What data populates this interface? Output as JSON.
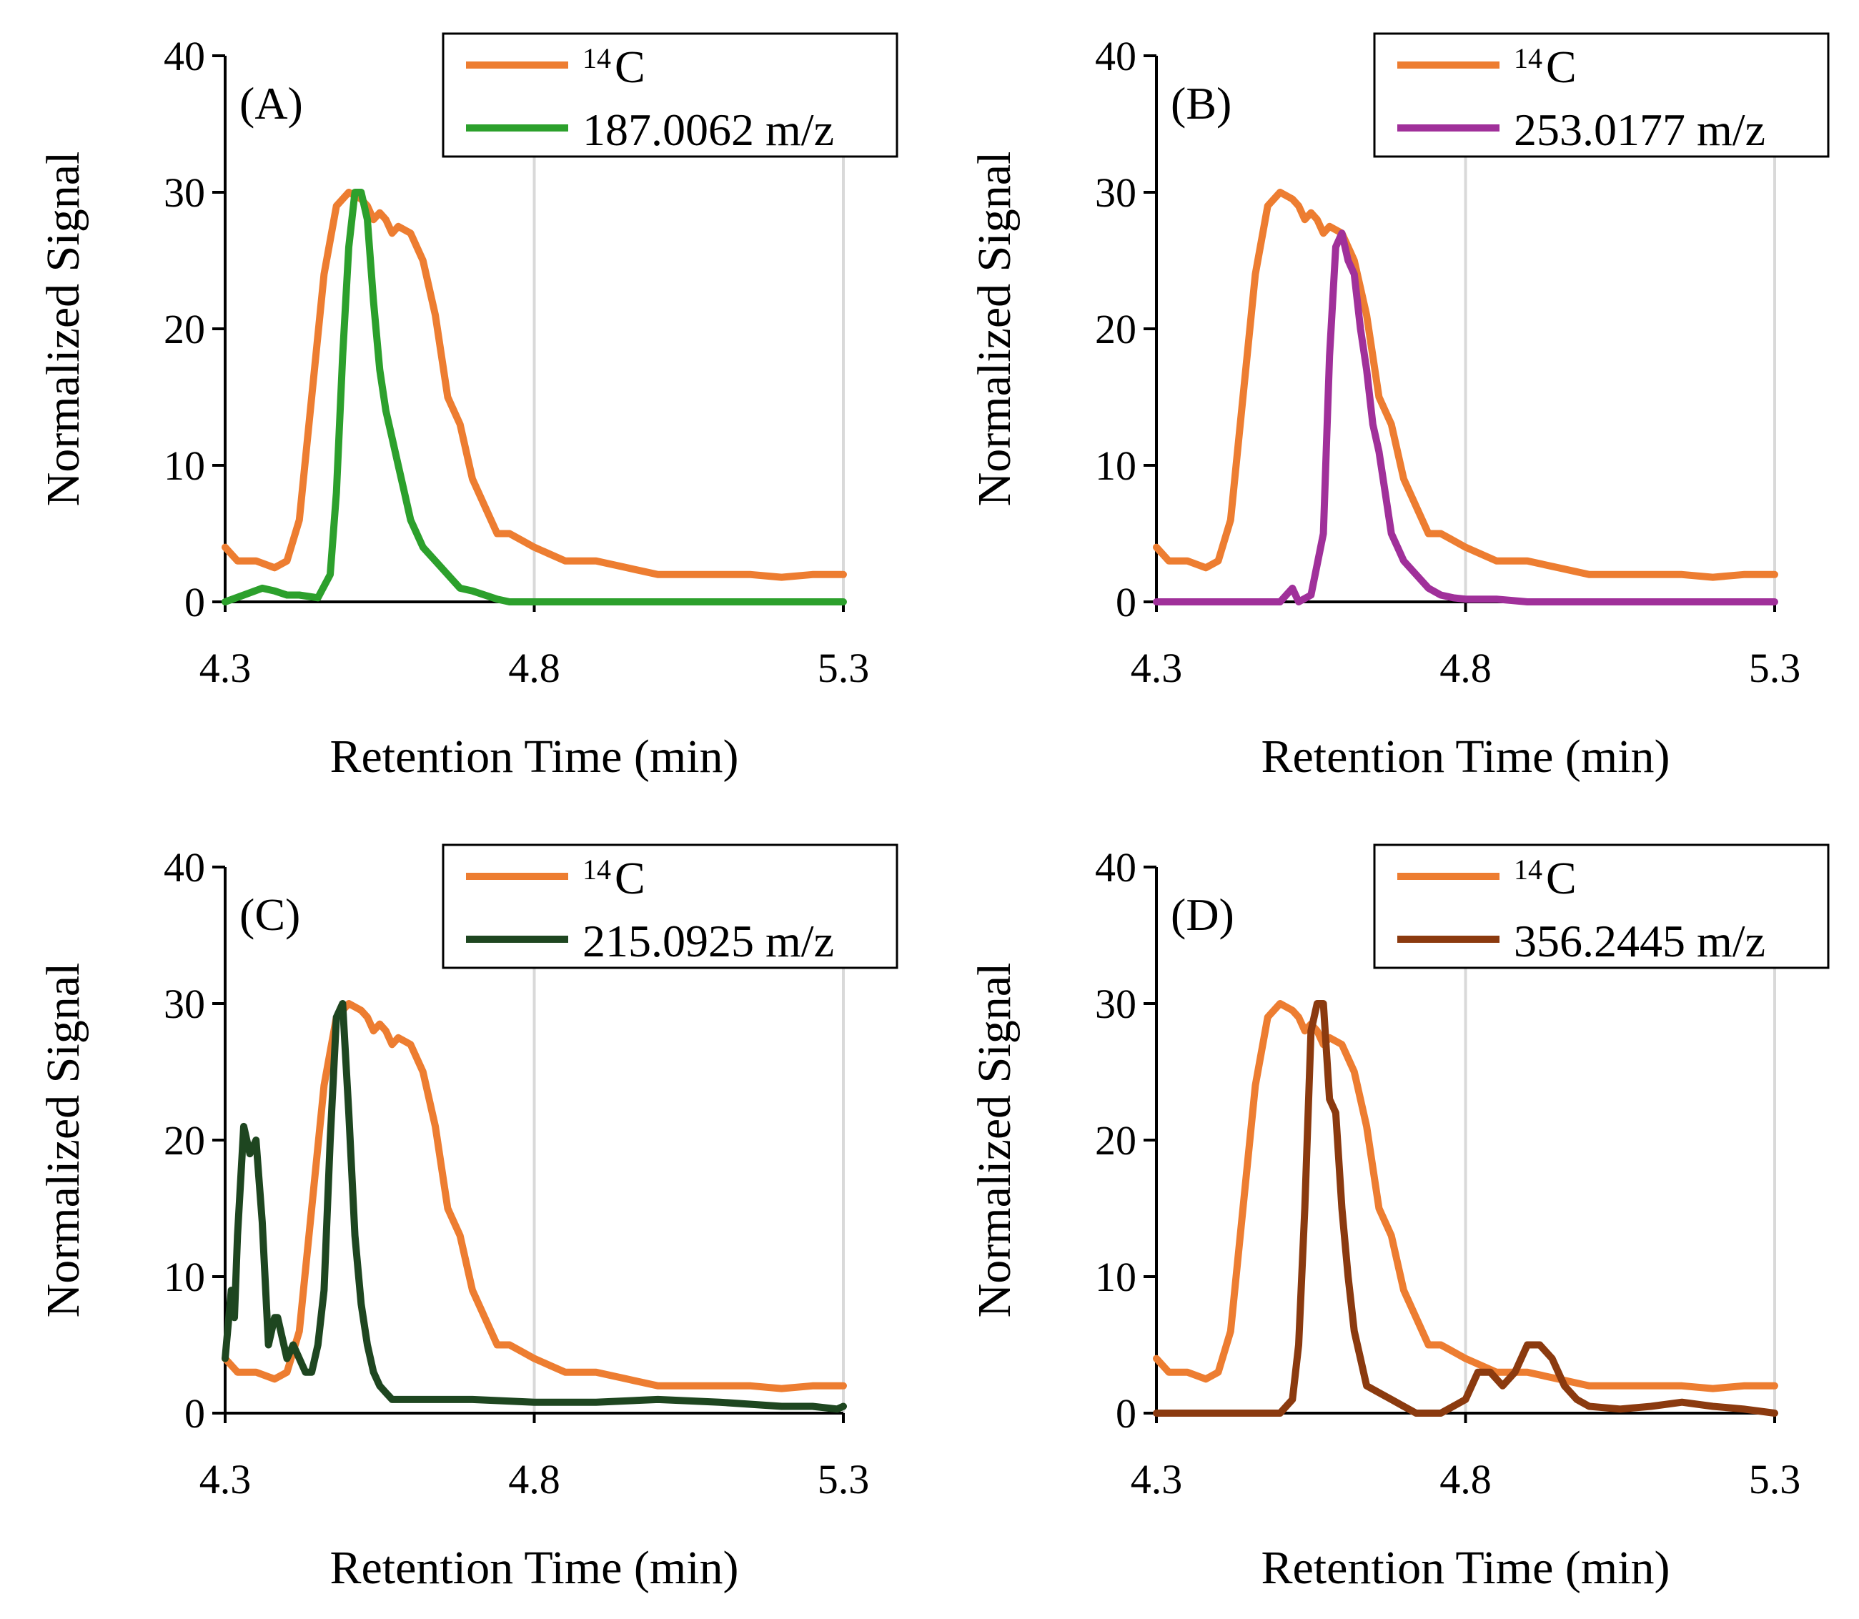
{
  "chart_data": [
    {
      "type": "line",
      "panel_label": "(A)",
      "xlabel": "Retention Time (min)",
      "ylabel": "Normalized Signal",
      "xlim": [
        4.3,
        5.3
      ],
      "ylim": [
        0,
        40
      ],
      "xticks": [
        "4.3",
        "4.8",
        "5.3"
      ],
      "yticks": [
        "0",
        "10",
        "20",
        "30",
        "40"
      ],
      "grid": "vertical",
      "legend": {
        "position": "top-right"
      },
      "series": [
        {
          "name": "14C",
          "legend_main": "C",
          "legend_sup": "14",
          "color": "#ED7D31",
          "x": [
            4.3,
            4.32,
            4.35,
            4.38,
            4.4,
            4.42,
            4.44,
            4.46,
            4.48,
            4.5,
            4.52,
            4.53,
            4.54,
            4.55,
            4.56,
            4.57,
            4.58,
            4.6,
            4.62,
            4.64,
            4.66,
            4.68,
            4.7,
            4.72,
            4.74,
            4.76,
            4.78,
            4.8,
            4.85,
            4.9,
            4.95,
            5.0,
            5.05,
            5.1,
            5.15,
            5.2,
            5.25,
            5.3
          ],
          "y": [
            4.0,
            3.0,
            3.0,
            2.5,
            3.0,
            6,
            15,
            24,
            29,
            30,
            29.5,
            29,
            28,
            28.5,
            28,
            27,
            27.5,
            27,
            25,
            21,
            15,
            13,
            9,
            7,
            5,
            5,
            4.5,
            4,
            3,
            3,
            2.5,
            2,
            2,
            2,
            2,
            1.8,
            2,
            2
          ]
        },
        {
          "name": "187.0062 m/z",
          "color": "#2CA02C",
          "x": [
            4.3,
            4.33,
            4.36,
            4.38,
            4.4,
            4.42,
            4.45,
            4.47,
            4.48,
            4.49,
            4.5,
            4.51,
            4.52,
            4.53,
            4.54,
            4.55,
            4.56,
            4.57,
            4.58,
            4.59,
            4.6,
            4.62,
            4.64,
            4.66,
            4.68,
            4.7,
            4.72,
            4.74,
            4.76,
            4.8,
            4.9,
            5.0,
            5.1,
            5.2,
            5.3
          ],
          "y": [
            0,
            0.5,
            1,
            0.8,
            0.5,
            0.5,
            0.3,
            2,
            8,
            18,
            26,
            30,
            30,
            28,
            22,
            17,
            14,
            12,
            10,
            8,
            6,
            4,
            3,
            2,
            1,
            0.8,
            0.5,
            0.2,
            0,
            0,
            0,
            0,
            0,
            0,
            0
          ]
        }
      ]
    },
    {
      "type": "line",
      "panel_label": "(B)",
      "xlabel": "Retention Time (min)",
      "ylabel": "Normalized Signal",
      "xlim": [
        4.3,
        5.3
      ],
      "ylim": [
        0,
        40
      ],
      "xticks": [
        "4.3",
        "4.8",
        "5.3"
      ],
      "yticks": [
        "0",
        "10",
        "20",
        "30",
        "40"
      ],
      "grid": "vertical",
      "legend": {
        "position": "top-right"
      },
      "series": [
        {
          "name": "14C",
          "legend_main": "C",
          "legend_sup": "14",
          "color": "#ED7D31",
          "x": [
            4.3,
            4.32,
            4.35,
            4.38,
            4.4,
            4.42,
            4.44,
            4.46,
            4.48,
            4.5,
            4.52,
            4.53,
            4.54,
            4.55,
            4.56,
            4.57,
            4.58,
            4.6,
            4.62,
            4.64,
            4.66,
            4.68,
            4.7,
            4.72,
            4.74,
            4.76,
            4.78,
            4.8,
            4.85,
            4.9,
            4.95,
            5.0,
            5.05,
            5.1,
            5.15,
            5.2,
            5.25,
            5.3
          ],
          "y": [
            4.0,
            3.0,
            3.0,
            2.5,
            3.0,
            6,
            15,
            24,
            29,
            30,
            29.5,
            29,
            28,
            28.5,
            28,
            27,
            27.5,
            27,
            25,
            21,
            15,
            13,
            9,
            7,
            5,
            5,
            4.5,
            4,
            3,
            3,
            2.5,
            2,
            2,
            2,
            2,
            1.8,
            2,
            2
          ]
        },
        {
          "name": "253.0177 m/z",
          "color": "#A0309A",
          "x": [
            4.3,
            4.4,
            4.5,
            4.52,
            4.53,
            4.55,
            4.57,
            4.58,
            4.59,
            4.6,
            4.61,
            4.62,
            4.63,
            4.64,
            4.65,
            4.66,
            4.67,
            4.68,
            4.69,
            4.7,
            4.72,
            4.74,
            4.76,
            4.78,
            4.8,
            4.85,
            4.9,
            5.0,
            5.1,
            5.2,
            5.3
          ],
          "y": [
            0,
            0,
            0,
            1,
            0,
            0.5,
            5,
            18,
            26,
            27,
            25,
            24,
            20,
            17,
            13,
            11,
            8,
            5,
            4,
            3,
            2,
            1,
            0.5,
            0.3,
            0.2,
            0.2,
            0,
            0,
            0,
            0,
            0
          ]
        }
      ]
    },
    {
      "type": "line",
      "panel_label": "(C)",
      "xlabel": "Retention Time (min)",
      "ylabel": "Normalized Signal",
      "xlim": [
        4.3,
        5.3
      ],
      "ylim": [
        0,
        40
      ],
      "xticks": [
        "4.3",
        "4.8",
        "5.3"
      ],
      "yticks": [
        "0",
        "10",
        "20",
        "30",
        "40"
      ],
      "grid": "vertical",
      "legend": {
        "position": "top-right"
      },
      "series": [
        {
          "name": "14C",
          "legend_main": "C",
          "legend_sup": "14",
          "color": "#ED7D31",
          "x": [
            4.3,
            4.32,
            4.35,
            4.38,
            4.4,
            4.42,
            4.44,
            4.46,
            4.48,
            4.5,
            4.52,
            4.53,
            4.54,
            4.55,
            4.56,
            4.57,
            4.58,
            4.6,
            4.62,
            4.64,
            4.66,
            4.68,
            4.7,
            4.72,
            4.74,
            4.76,
            4.78,
            4.8,
            4.85,
            4.9,
            4.95,
            5.0,
            5.05,
            5.1,
            5.15,
            5.2,
            5.25,
            5.3
          ],
          "y": [
            4.0,
            3.0,
            3.0,
            2.5,
            3.0,
            6,
            15,
            24,
            29,
            30,
            29.5,
            29,
            28,
            28.5,
            28,
            27,
            27.5,
            27,
            25,
            21,
            15,
            13,
            9,
            7,
            5,
            5,
            4.5,
            4,
            3,
            3,
            2.5,
            2,
            2,
            2,
            2,
            1.8,
            2,
            2
          ]
        },
        {
          "name": "215.0925 m/z",
          "color": "#1E4620",
          "x": [
            4.3,
            4.31,
            4.315,
            4.32,
            4.33,
            4.34,
            4.35,
            4.36,
            4.37,
            4.38,
            4.385,
            4.39,
            4.4,
            4.41,
            4.42,
            4.43,
            4.44,
            4.45,
            4.46,
            4.47,
            4.48,
            4.49,
            4.5,
            4.51,
            4.52,
            4.53,
            4.54,
            4.55,
            4.56,
            4.57,
            4.58,
            4.6,
            4.65,
            4.7,
            4.8,
            4.9,
            5.0,
            5.1,
            5.2,
            5.25,
            5.29,
            5.3
          ],
          "y": [
            4,
            9,
            7,
            13,
            21,
            19,
            20,
            14,
            5,
            7,
            7,
            6,
            4,
            5,
            4,
            3,
            3,
            5,
            9,
            20,
            29,
            30,
            22,
            13,
            8,
            5,
            3,
            2,
            1.5,
            1,
            1,
            1,
            1,
            1,
            0.8,
            0.8,
            1,
            0.8,
            0.5,
            0.5,
            0.3,
            0.5
          ]
        }
      ]
    },
    {
      "type": "line",
      "panel_label": "(D)",
      "xlabel": "Retention Time (min)",
      "ylabel": "Normalized Signal",
      "xlim": [
        4.3,
        5.3
      ],
      "ylim": [
        0,
        40
      ],
      "xticks": [
        "4.3",
        "4.8",
        "5.3"
      ],
      "yticks": [
        "0",
        "10",
        "20",
        "30",
        "40"
      ],
      "grid": "vertical",
      "legend": {
        "position": "top-right"
      },
      "series": [
        {
          "name": "14C",
          "legend_main": "C",
          "legend_sup": "14",
          "color": "#ED7D31",
          "x": [
            4.3,
            4.32,
            4.35,
            4.38,
            4.4,
            4.42,
            4.44,
            4.46,
            4.48,
            4.5,
            4.52,
            4.53,
            4.54,
            4.55,
            4.56,
            4.57,
            4.58,
            4.6,
            4.62,
            4.64,
            4.66,
            4.68,
            4.7,
            4.72,
            4.74,
            4.76,
            4.78,
            4.8,
            4.85,
            4.9,
            4.95,
            5.0,
            5.05,
            5.1,
            5.15,
            5.2,
            5.25,
            5.3
          ],
          "y": [
            4.0,
            3.0,
            3.0,
            2.5,
            3.0,
            6,
            15,
            24,
            29,
            30,
            29.5,
            29,
            28,
            28.5,
            28,
            27,
            27.5,
            27,
            25,
            21,
            15,
            13,
            9,
            7,
            5,
            5,
            4.5,
            4,
            3,
            3,
            2.5,
            2,
            2,
            2,
            2,
            1.8,
            2,
            2
          ]
        },
        {
          "name": "356.2445 m/z",
          "color": "#8B3A0F",
          "x": [
            4.3,
            4.4,
            4.5,
            4.52,
            4.53,
            4.54,
            4.55,
            4.56,
            4.57,
            4.58,
            4.59,
            4.6,
            4.61,
            4.62,
            4.63,
            4.64,
            4.66,
            4.68,
            4.7,
            4.72,
            4.74,
            4.76,
            4.78,
            4.8,
            4.82,
            4.84,
            4.86,
            4.88,
            4.9,
            4.92,
            4.94,
            4.96,
            4.98,
            5.0,
            5.05,
            5.1,
            5.15,
            5.2,
            5.25,
            5.3
          ],
          "y": [
            0,
            0,
            0,
            1,
            5,
            15,
            28,
            30,
            30,
            23,
            22,
            15,
            10,
            6,
            4,
            2,
            1.5,
            1,
            0.5,
            0,
            0,
            0,
            0.5,
            1,
            3,
            3,
            2,
            3,
            5,
            5,
            4,
            2,
            1,
            0.5,
            0.3,
            0.5,
            0.8,
            0.5,
            0.3,
            0
          ]
        }
      ]
    }
  ]
}
